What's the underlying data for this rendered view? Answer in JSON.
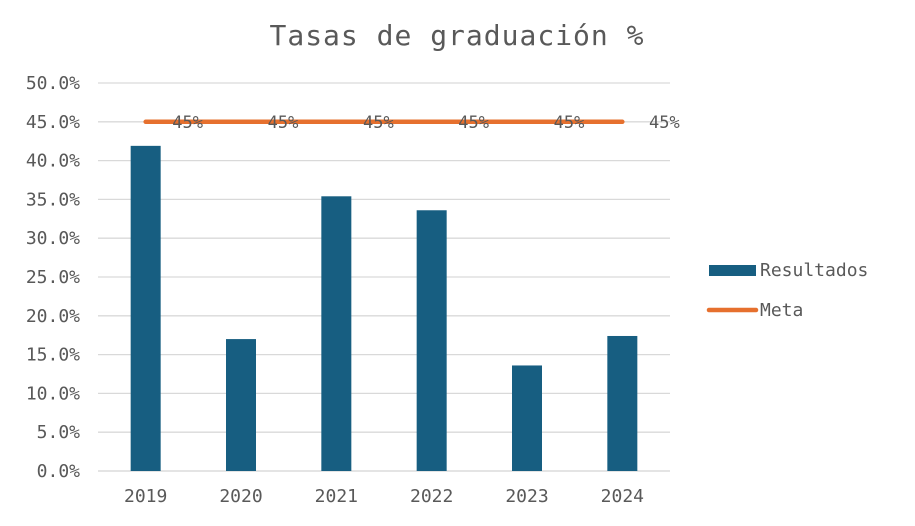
{
  "chart_data": {
    "type": "bar",
    "title": "Tasas de graduación %",
    "categories": [
      "2019",
      "2020",
      "2021",
      "2022",
      "2023",
      "2024"
    ],
    "series": [
      {
        "name": "Resultados",
        "type": "bar",
        "color": "#175e81",
        "values": [
          41.9,
          17.0,
          35.4,
          33.6,
          13.6,
          17.4
        ]
      },
      {
        "name": "Meta",
        "type": "line",
        "color": "#e6702e",
        "values": [
          45,
          45,
          45,
          45,
          45,
          45
        ],
        "data_labels": [
          "45%",
          "45%",
          "45%",
          "45%",
          "45%",
          "45%"
        ]
      }
    ],
    "ylim": [
      0,
      50
    ],
    "yticks": [
      "0.0%",
      "5.0%",
      "10.0%",
      "15.0%",
      "20.0%",
      "25.0%",
      "30.0%",
      "35.0%",
      "40.0%",
      "45.0%",
      "50.0%"
    ],
    "grid": true,
    "legend_position": "right",
    "xlabel": "",
    "ylabel": ""
  }
}
